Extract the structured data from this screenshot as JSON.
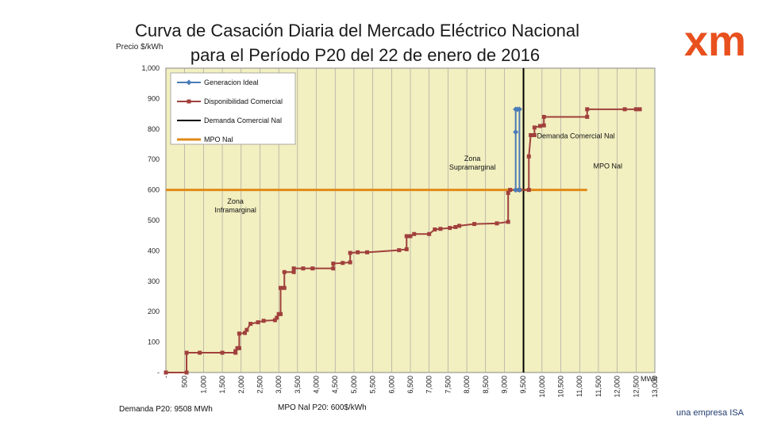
{
  "header": {
    "title_line1": "Curva de Casación Diaria del Mercado Eléctrico Nacional",
    "title_line2": "para el Período P20 del 22 de enero de 2016",
    "y_unit": "Precio $/kWh",
    "x_unit": "MWh"
  },
  "logo": {
    "text": "xm",
    "color": "#e8501e"
  },
  "footer": {
    "demanda_note": "Demanda P20: 9508 MWh",
    "mpo_note": "MPO Nal P20: 600$/kWh",
    "brand": "una empresa ISA"
  },
  "colors": {
    "plot_bg": "#f2efc0",
    "ideal": "#4a7bb7",
    "disponibilidad": "#a0403c",
    "demanda": "#000000",
    "mpo": "#e08a18"
  },
  "chart_data": {
    "type": "line",
    "title": "Curva de Casación Diaria del Mercado Eléctrico Nacional para el Período P20 del 22 de enero de 2016",
    "xlabel": "MWh",
    "ylabel": "Precio $/kWh",
    "xlim": [
      0,
      13000
    ],
    "ylim": [
      0,
      1000
    ],
    "x_ticks": [
      {
        "v": 0,
        "label": "-"
      },
      {
        "v": 500,
        "label": "500"
      },
      {
        "v": 1000,
        "label": "1,000"
      },
      {
        "v": 1500,
        "label": "1,500"
      },
      {
        "v": 2000,
        "label": "2,000"
      },
      {
        "v": 2500,
        "label": "2,500"
      },
      {
        "v": 3000,
        "label": "3,000"
      },
      {
        "v": 3500,
        "label": "3,500"
      },
      {
        "v": 4000,
        "label": "4,000"
      },
      {
        "v": 4500,
        "label": "4,500"
      },
      {
        "v": 5000,
        "label": "5,000"
      },
      {
        "v": 5500,
        "label": "5,500"
      },
      {
        "v": 6000,
        "label": "6,000"
      },
      {
        "v": 6500,
        "label": "6,500"
      },
      {
        "v": 7000,
        "label": "7,000"
      },
      {
        "v": 7500,
        "label": "7,500"
      },
      {
        "v": 8000,
        "label": "8,000"
      },
      {
        "v": 8500,
        "label": "8,500"
      },
      {
        "v": 9000,
        "label": "9,000"
      },
      {
        "v": 9500,
        "label": "9,500"
      },
      {
        "v": 10000,
        "label": "10,000"
      },
      {
        "v": 10500,
        "label": "10,500"
      },
      {
        "v": 11000,
        "label": "11,000"
      },
      {
        "v": 11500,
        "label": "11,500"
      },
      {
        "v": 12000,
        "label": "12,000"
      },
      {
        "v": 12500,
        "label": "12,500"
      },
      {
        "v": 13000,
        "label": "13,000"
      }
    ],
    "y_ticks": [
      {
        "v": 0,
        "label": "-"
      },
      {
        "v": 100,
        "label": "100"
      },
      {
        "v": 200,
        "label": "200"
      },
      {
        "v": 300,
        "label": "300"
      },
      {
        "v": 400,
        "label": "400"
      },
      {
        "v": 500,
        "label": "500"
      },
      {
        "v": 600,
        "label": "600"
      },
      {
        "v": 700,
        "label": "700"
      },
      {
        "v": 800,
        "label": "800"
      },
      {
        "v": 900,
        "label": "900"
      },
      {
        "v": 1000,
        "label": "1,000"
      }
    ],
    "grid": "vertical",
    "legend": "top-left",
    "series": [
      {
        "name": "Generacion Ideal",
        "marker": "diamond",
        "points": [
          [
            9300,
            600
          ],
          [
            9300,
            790
          ],
          [
            9300,
            865
          ],
          [
            9350,
            865
          ],
          [
            9400,
            865
          ],
          [
            9400,
            600
          ],
          [
            9300,
            600
          ]
        ]
      },
      {
        "name": "Disponibilidad Comercial",
        "marker": "square",
        "points": [
          [
            0,
            0
          ],
          [
            550,
            0
          ],
          [
            550,
            65
          ],
          [
            900,
            65
          ],
          [
            1500,
            65
          ],
          [
            1850,
            65
          ],
          [
            1850,
            70
          ],
          [
            1900,
            80
          ],
          [
            1950,
            80
          ],
          [
            1950,
            128
          ],
          [
            2100,
            130
          ],
          [
            2150,
            140
          ],
          [
            2250,
            160
          ],
          [
            2450,
            165
          ],
          [
            2600,
            170
          ],
          [
            2900,
            172
          ],
          [
            2950,
            180
          ],
          [
            3000,
            192
          ],
          [
            3050,
            192
          ],
          [
            3050,
            278
          ],
          [
            3150,
            278
          ],
          [
            3150,
            330
          ],
          [
            3400,
            330
          ],
          [
            3400,
            342
          ],
          [
            3650,
            342
          ],
          [
            3900,
            342
          ],
          [
            4450,
            342
          ],
          [
            4450,
            358
          ],
          [
            4700,
            360
          ],
          [
            4900,
            362
          ],
          [
            4900,
            393
          ],
          [
            5100,
            395
          ],
          [
            5350,
            395
          ],
          [
            6200,
            402
          ],
          [
            6400,
            405
          ],
          [
            6400,
            448
          ],
          [
            6500,
            448
          ],
          [
            6600,
            455
          ],
          [
            7000,
            455
          ],
          [
            7150,
            470
          ],
          [
            7300,
            472
          ],
          [
            7550,
            475
          ],
          [
            7700,
            478
          ],
          [
            7800,
            482
          ],
          [
            8200,
            488
          ],
          [
            8800,
            490
          ],
          [
            9100,
            495
          ],
          [
            9100,
            590
          ],
          [
            9150,
            600
          ],
          [
            9400,
            600
          ],
          [
            9650,
            600
          ],
          [
            9650,
            710
          ],
          [
            9700,
            780
          ],
          [
            9800,
            780
          ],
          [
            9800,
            805
          ],
          [
            9950,
            810
          ],
          [
            10050,
            812
          ],
          [
            10050,
            840
          ],
          [
            11200,
            840
          ],
          [
            11200,
            865
          ],
          [
            12200,
            865
          ],
          [
            12500,
            865
          ],
          [
            12600,
            865
          ]
        ]
      },
      {
        "name": "Demanda Comercial Nal",
        "marker": "none",
        "points": [
          [
            9508,
            0
          ],
          [
            9508,
            1000
          ]
        ]
      },
      {
        "name": "MPO Nal",
        "marker": "none",
        "points": [
          [
            0,
            600
          ],
          [
            11200,
            600
          ]
        ]
      }
    ],
    "annotations": [
      {
        "text": "Zona Supramarginal",
        "x": 8150,
        "y": 695
      },
      {
        "text": "Zona Inframarginal",
        "x": 1850,
        "y": 555
      },
      {
        "text": "Demanda Comercial Nal",
        "x": 10900,
        "y": 770
      },
      {
        "text": "MPO Nal",
        "x": 11750,
        "y": 670
      }
    ]
  }
}
